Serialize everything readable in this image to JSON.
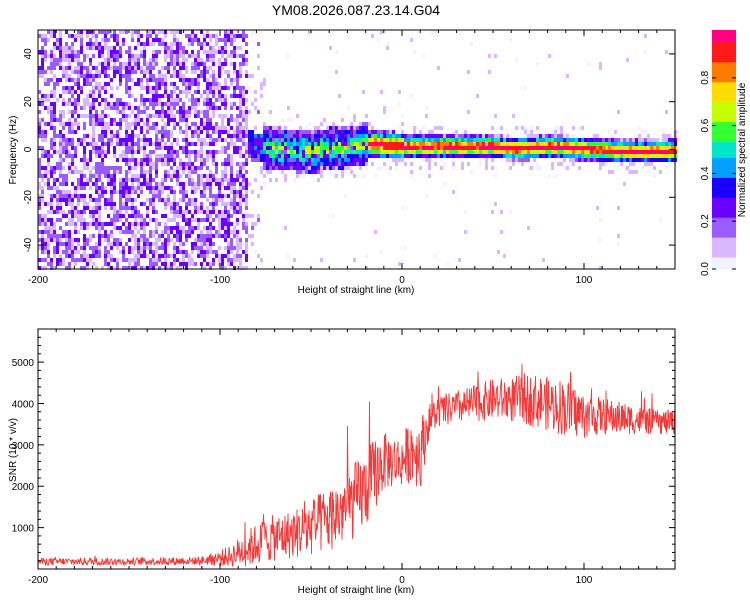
{
  "page": {
    "title": "YM08.2026.087.23.14.G04"
  },
  "colors": {
    "snr_line": "#f23a3a",
    "colormap": [
      "#f2f2ff",
      "#d9b8ff",
      "#9b5cff",
      "#6a00ff",
      "#1a00ff",
      "#00a0ff",
      "#00e6c8",
      "#33ff33",
      "#c8ff00",
      "#ffdd00",
      "#ff7a00",
      "#ff1a1a",
      "#ff0080"
    ]
  },
  "chart_data": [
    {
      "id": "spectrogram",
      "type": "heatmap",
      "title": "YM08.2026.087.23.14.G04",
      "xlabel": "Height of straight line (km)",
      "ylabel": "Frequency (Hz)",
      "xlim": [
        -200,
        150
      ],
      "ylim": [
        -50,
        50
      ],
      "x_ticks": [
        -200,
        -100,
        0,
        100
      ],
      "y_ticks": [
        -40,
        -20,
        0,
        20,
        40
      ],
      "colorbar": {
        "label": "Normalized spectral amplitude",
        "range": [
          0.0,
          1.0
        ],
        "ticks": [
          "0.0",
          "0.2",
          "0.4",
          "0.6",
          "0.8"
        ]
      },
      "regions": [
        {
          "x_range": [
            -200,
            -85
          ],
          "description_level": 0.25,
          "freq_spread": 50
        },
        {
          "x_range": [
            -85,
            -20
          ],
          "description_level": 0.45,
          "freq_spread": 8
        },
        {
          "x_range": [
            -20,
            150
          ],
          "description_level": 0.9,
          "freq_spread": 2
        }
      ],
      "center_line": [
        [
          -100,
          8
        ],
        [
          -90,
          3
        ],
        [
          -70,
          1
        ],
        [
          -50,
          0
        ],
        [
          -30,
          2
        ],
        [
          -15,
          3
        ],
        [
          0,
          2
        ],
        [
          15,
          2
        ],
        [
          30,
          2
        ],
        [
          50,
          2
        ],
        [
          60,
          1
        ],
        [
          80,
          2
        ],
        [
          100,
          1
        ],
        [
          120,
          0
        ],
        [
          150,
          0
        ]
      ]
    },
    {
      "id": "snr",
      "type": "line",
      "xlabel": "Height of straight line (km)",
      "ylabel": "SNR (10 * v/v)",
      "xlim": [
        -200,
        150
      ],
      "ylim": [
        0,
        5800
      ],
      "x_ticks": [
        -200,
        -100,
        0,
        100
      ],
      "y_ticks": [
        1000,
        2000,
        3000,
        4000,
        5000
      ],
      "envelope": {
        "x": [
          -200,
          -150,
          -110,
          -95,
          -85,
          -75,
          -60,
          -50,
          -40,
          -30,
          -20,
          -15,
          -10,
          0,
          5,
          10,
          15,
          20,
          30,
          40,
          50,
          60,
          70,
          80,
          90,
          100,
          110,
          120,
          130,
          140,
          150
        ],
        "mean": [
          180,
          180,
          200,
          300,
          500,
          700,
          850,
          1000,
          1200,
          1500,
          1900,
          2300,
          2600,
          2600,
          2900,
          2800,
          3600,
          3800,
          3900,
          4000,
          4100,
          4100,
          4100,
          4000,
          3900,
          3700,
          3700,
          3650,
          3600,
          3550,
          3550
        ],
        "amplitude": [
          90,
          90,
          100,
          250,
          450,
          550,
          600,
          700,
          800,
          900,
          950,
          900,
          700,
          600,
          800,
          900,
          400,
          400,
          400,
          450,
          500,
          550,
          650,
          650,
          700,
          550,
          450,
          400,
          350,
          300,
          300
        ]
      }
    }
  ]
}
